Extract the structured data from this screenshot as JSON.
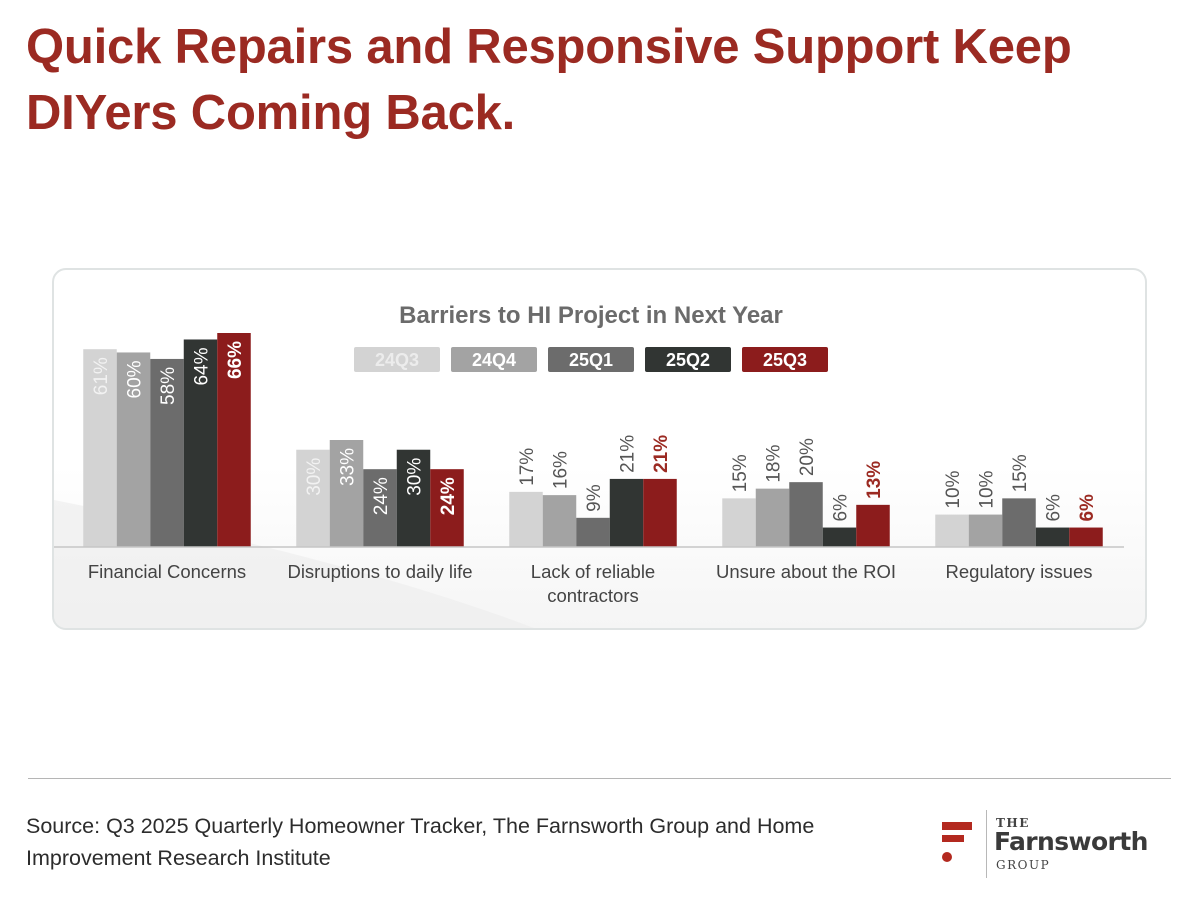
{
  "title": "Quick Repairs and Responsive Support Keep DIYers Coming Back.",
  "source_note": "Source: Q3 2025 Quarterly Homeowner Tracker, The Farnsworth Group and Home Improvement Research Institute",
  "logo": {
    "the": "THE",
    "name": "Farnsworth",
    "group": "GROUP"
  },
  "colors": {
    "title": "#9b2a22",
    "series": [
      "#d3d3d3",
      "#a3a3a3",
      "#6c6c6c",
      "#313533",
      "#8c1c1c"
    ]
  },
  "chart_data": {
    "type": "bar",
    "title": "Barriers to HI Project in Next Year",
    "categories": [
      [
        "Financial Concerns"
      ],
      [
        "Disruptions to daily life"
      ],
      [
        "Lack of reliable",
        "contractors"
      ],
      [
        "Unsure about the ROI"
      ],
      [
        "Regulatory issues"
      ]
    ],
    "series": [
      {
        "name": "24Q3",
        "values": [
          61,
          30,
          17,
          15,
          10
        ]
      },
      {
        "name": "24Q4",
        "values": [
          60,
          33,
          16,
          18,
          10
        ]
      },
      {
        "name": "25Q1",
        "values": [
          58,
          24,
          9,
          20,
          15
        ]
      },
      {
        "name": "25Q2",
        "values": [
          64,
          30,
          21,
          6,
          6
        ]
      },
      {
        "name": "25Q3",
        "values": [
          66,
          24,
          21,
          13,
          6
        ]
      }
    ],
    "value_suffix": "%",
    "legend_position": "top-center",
    "ylim": [
      0,
      66
    ],
    "grid": false
  }
}
